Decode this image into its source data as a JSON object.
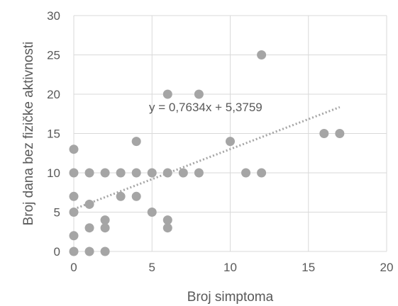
{
  "chart_data": {
    "type": "scatter",
    "xlabel": "Broj simptoma",
    "ylabel": "Broj dana bez fizičke aktivnosti",
    "xlim": [
      0,
      20
    ],
    "ylim": [
      0,
      30
    ],
    "x_ticks": [
      0,
      5,
      10,
      15,
      20
    ],
    "y_ticks": [
      0,
      5,
      10,
      15,
      20,
      25,
      30
    ],
    "grid": true,
    "legend": "none",
    "marker_color": "#a5a5a5",
    "trendline_color": "#a5a5a5",
    "points": [
      {
        "x": 0,
        "y": 0
      },
      {
        "x": 0,
        "y": 2
      },
      {
        "x": 0,
        "y": 5
      },
      {
        "x": 0,
        "y": 7
      },
      {
        "x": 0,
        "y": 10
      },
      {
        "x": 0,
        "y": 13
      },
      {
        "x": 1,
        "y": 0
      },
      {
        "x": 1,
        "y": 3
      },
      {
        "x": 1,
        "y": 6
      },
      {
        "x": 1,
        "y": 10
      },
      {
        "x": 2,
        "y": 0
      },
      {
        "x": 2,
        "y": 3
      },
      {
        "x": 2,
        "y": 4
      },
      {
        "x": 2,
        "y": 10
      },
      {
        "x": 3,
        "y": 7
      },
      {
        "x": 3,
        "y": 10
      },
      {
        "x": 4,
        "y": 7
      },
      {
        "x": 4,
        "y": 10
      },
      {
        "x": 4,
        "y": 14
      },
      {
        "x": 5,
        "y": 5
      },
      {
        "x": 5,
        "y": 10
      },
      {
        "x": 6,
        "y": 3
      },
      {
        "x": 6,
        "y": 4
      },
      {
        "x": 6,
        "y": 10
      },
      {
        "x": 6,
        "y": 20
      },
      {
        "x": 7,
        "y": 10
      },
      {
        "x": 8,
        "y": 10
      },
      {
        "x": 8,
        "y": 20
      },
      {
        "x": 10,
        "y": 14
      },
      {
        "x": 11,
        "y": 10
      },
      {
        "x": 12,
        "y": 10
      },
      {
        "x": 12,
        "y": 25
      },
      {
        "x": 16,
        "y": 15
      },
      {
        "x": 17,
        "y": 15
      }
    ],
    "trendline": {
      "slope": 0.7634,
      "intercept": 5.3759,
      "x_range": [
        0,
        17
      ],
      "equation_label": "y = 0,7634x + 5,3759"
    }
  }
}
